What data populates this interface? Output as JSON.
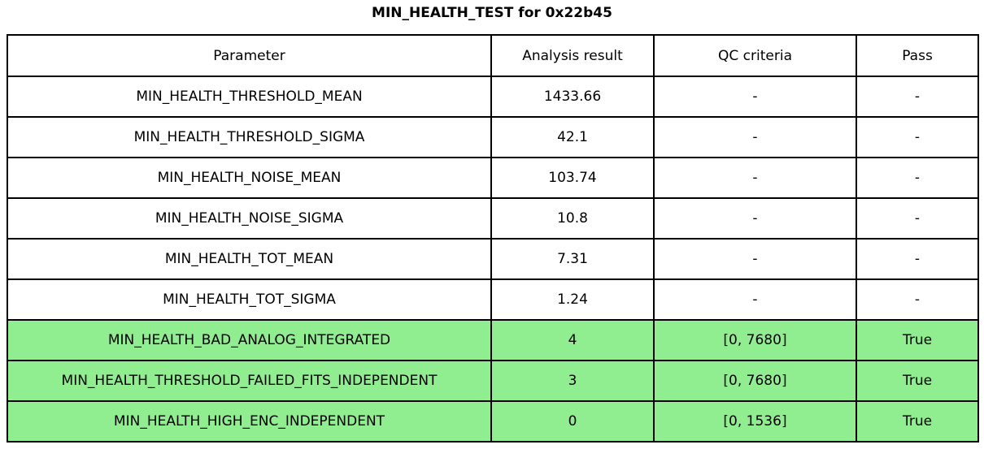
{
  "title": "MIN_HEALTH_TEST for 0x22b45",
  "colors": {
    "highlight_green": "#90EE90",
    "border": "#000000",
    "background": "#FFFFFF",
    "text": "#000000"
  },
  "chart_data": {
    "type": "table",
    "title": "MIN_HEALTH_TEST for 0x22b45",
    "columns": [
      "Parameter",
      "Analysis result",
      "QC criteria",
      "Pass"
    ],
    "rows": [
      [
        "MIN_HEALTH_THRESHOLD_MEAN",
        "1433.66",
        "-",
        "-"
      ],
      [
        "MIN_HEALTH_THRESHOLD_SIGMA",
        "42.1",
        "-",
        "-"
      ],
      [
        "MIN_HEALTH_NOISE_MEAN",
        "103.74",
        "-",
        "-"
      ],
      [
        "MIN_HEALTH_NOISE_SIGMA",
        "10.8",
        "-",
        "-"
      ],
      [
        "MIN_HEALTH_TOT_MEAN",
        "7.31",
        "-",
        "-"
      ],
      [
        "MIN_HEALTH_TOT_SIGMA",
        "1.24",
        "-",
        "-"
      ],
      [
        "MIN_HEALTH_BAD_ANALOG_INTEGRATED",
        "4",
        "[0, 7680]",
        "True"
      ],
      [
        "MIN_HEALTH_THRESHOLD_FAILED_FITS_INDEPENDENT",
        "3",
        "[0, 7680]",
        "True"
      ],
      [
        "MIN_HEALTH_HIGH_ENC_INDEPENDENT",
        "0",
        "[0, 1536]",
        "True"
      ]
    ],
    "highlighted_rows": [
      6,
      7,
      8
    ],
    "highlight_color": "#90EE90",
    "legend_position": "none",
    "grid": "full-borders"
  }
}
